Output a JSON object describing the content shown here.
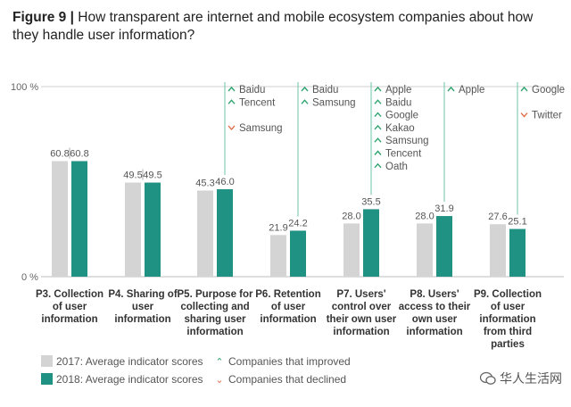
{
  "title": {
    "figure_label": "Figure 9 |",
    "text": "How transparent are internet and mobile ecosystem companies about how they handle user information?"
  },
  "colors": {
    "y2017": "#d4d4d4",
    "y2018": "#1f9283",
    "improved": "#2fa56f",
    "declined": "#e0704a",
    "connector": "#6cc4a9"
  },
  "chart_data": {
    "type": "bar",
    "categories": [
      "P3. Collection of user information",
      "P4. Sharing of user information",
      "P5. Purpose for collecting and sharing user information",
      "P6. Retention of user information",
      "P7. Users' control over their own user information",
      "P8. Users' access to their own user information",
      "P9. Collection of user information from third parties"
    ],
    "category_lines": [
      [
        "P3. Collection",
        "of user",
        "information"
      ],
      [
        "P4. Sharing of",
        "user",
        "information"
      ],
      [
        "P5. Purpose for",
        "collecting and",
        "sharing user",
        "information"
      ],
      [
        "P6. Retention",
        "of user",
        "information"
      ],
      [
        "P7. Users'",
        "control over",
        "their own user",
        "information"
      ],
      [
        "P8. Users'",
        "access to their",
        "own user",
        "information"
      ],
      [
        "P9. Collection",
        "of user",
        "information",
        "from third",
        "parties"
      ]
    ],
    "series": [
      {
        "name": "2017: Average indicator scores",
        "values": [
          60.8,
          49.5,
          45.3,
          21.9,
          28.0,
          28.0,
          27.6
        ],
        "labels": [
          "60.8",
          "49.5",
          "45.3",
          "21.9",
          "28.0",
          "28.0",
          "27.6"
        ]
      },
      {
        "name": "2018: Average indicator scores",
        "values": [
          60.8,
          49.5,
          46.0,
          24.2,
          35.5,
          31.9,
          25.1
        ],
        "labels": [
          "60.8",
          "49.5",
          "46.0",
          "24.2",
          "35.5",
          "31.9",
          "25.1"
        ]
      }
    ],
    "ylim": [
      0,
      100
    ],
    "ytick_labels": [
      "0 %",
      "100 %"
    ],
    "company_annotations": [
      [],
      [],
      [
        {
          "name": "Baidu",
          "status": "improved"
        },
        {
          "name": "Tencent",
          "status": "improved"
        },
        {
          "name": "",
          "status": "gap"
        },
        {
          "name": "Samsung",
          "status": "declined"
        }
      ],
      [
        {
          "name": "Baidu",
          "status": "improved"
        },
        {
          "name": "Samsung",
          "status": "improved"
        }
      ],
      [
        {
          "name": "Apple",
          "status": "improved"
        },
        {
          "name": "Baidu",
          "status": "improved"
        },
        {
          "name": "Google",
          "status": "improved"
        },
        {
          "name": "Kakao",
          "status": "improved"
        },
        {
          "name": "Samsung",
          "status": "improved"
        },
        {
          "name": "Tencent",
          "status": "improved"
        },
        {
          "name": "Oath",
          "status": "improved"
        }
      ],
      [
        {
          "name": "Apple",
          "status": "improved"
        }
      ],
      [
        {
          "name": "Google",
          "status": "improved"
        },
        {
          "name": "",
          "status": "gap"
        },
        {
          "name": "Twitter",
          "status": "declined"
        }
      ]
    ]
  },
  "legend": {
    "y2017": "2017: Average indicator scores",
    "y2018": "2018: Average indicator scores",
    "improved": "Companies that improved",
    "declined": "Companies that declined"
  },
  "watermark": {
    "text": "华人生活网"
  }
}
